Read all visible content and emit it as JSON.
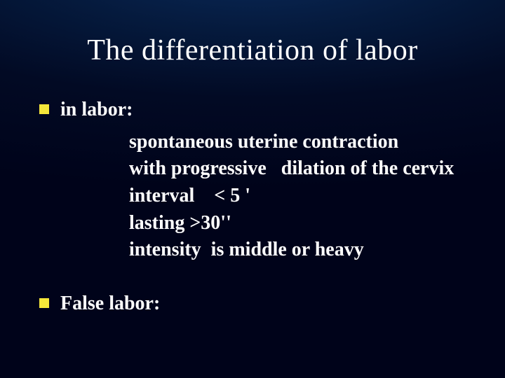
{
  "slide": {
    "title": "The differentiation of labor",
    "title_color": "#ffffff",
    "title_fontsize": 42,
    "bullet_color": "#f5e73a",
    "body_color": "#ffffff",
    "body_fontsize": 28,
    "background_gradient": {
      "inner": "#0a2a5a",
      "mid": "#051a3d",
      "outer": "#00031a"
    },
    "items": [
      {
        "label": "in labor:",
        "sub": [
          "spontaneous uterine contraction",
          "with progressive   dilation of the cervix",
          "interval    < 5 '",
          "lasting >30''",
          "intensity  is middle or heavy"
        ]
      },
      {
        "label": "False labor:",
        "sub": []
      }
    ]
  }
}
